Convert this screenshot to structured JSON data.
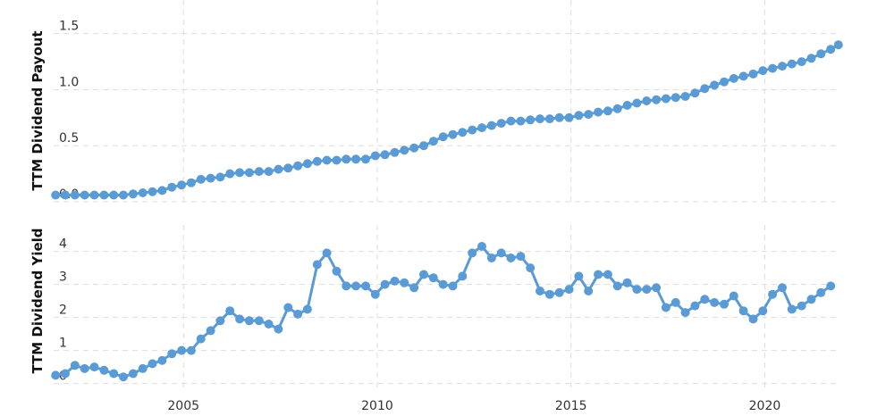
{
  "chart_data": [
    {
      "type": "line",
      "ylabel": "TTM Dividend Payout",
      "ylim": [
        0,
        1.8
      ],
      "yticks": [
        "0.0",
        "0.5",
        "1.0",
        "1.5"
      ],
      "xlim": [
        2001.65,
        2021.95
      ],
      "xticks": [
        "2005",
        "2010",
        "2015",
        "2020"
      ],
      "grid": true,
      "color": "#5b9bd5",
      "series": [
        {
          "values": [
            [
              2001.7,
              0.06
            ],
            [
              2001.95,
              0.06
            ],
            [
              2002.2,
              0.06
            ],
            [
              2002.45,
              0.06
            ],
            [
              2002.7,
              0.06
            ],
            [
              2002.95,
              0.06
            ],
            [
              2003.2,
              0.06
            ],
            [
              2003.45,
              0.06
            ],
            [
              2003.7,
              0.07
            ],
            [
              2003.95,
              0.08
            ],
            [
              2004.2,
              0.09
            ],
            [
              2004.45,
              0.1
            ],
            [
              2004.7,
              0.13
            ],
            [
              2004.95,
              0.15
            ],
            [
              2005.2,
              0.17
            ],
            [
              2005.45,
              0.2
            ],
            [
              2005.7,
              0.21
            ],
            [
              2005.95,
              0.22
            ],
            [
              2006.2,
              0.25
            ],
            [
              2006.45,
              0.26
            ],
            [
              2006.7,
              0.26
            ],
            [
              2006.95,
              0.27
            ],
            [
              2007.2,
              0.27
            ],
            [
              2007.45,
              0.29
            ],
            [
              2007.7,
              0.3
            ],
            [
              2007.95,
              0.32
            ],
            [
              2008.2,
              0.34
            ],
            [
              2008.45,
              0.36
            ],
            [
              2008.7,
              0.37
            ],
            [
              2008.95,
              0.37
            ],
            [
              2009.2,
              0.38
            ],
            [
              2009.45,
              0.38
            ],
            [
              2009.7,
              0.38
            ],
            [
              2009.95,
              0.41
            ],
            [
              2010.2,
              0.42
            ],
            [
              2010.45,
              0.44
            ],
            [
              2010.7,
              0.46
            ],
            [
              2010.95,
              0.48
            ],
            [
              2011.2,
              0.5
            ],
            [
              2011.45,
              0.54
            ],
            [
              2011.7,
              0.58
            ],
            [
              2011.95,
              0.6
            ],
            [
              2012.2,
              0.62
            ],
            [
              2012.45,
              0.64
            ],
            [
              2012.7,
              0.66
            ],
            [
              2012.95,
              0.68
            ],
            [
              2013.2,
              0.7
            ],
            [
              2013.45,
              0.72
            ],
            [
              2013.7,
              0.72
            ],
            [
              2013.95,
              0.73
            ],
            [
              2014.2,
              0.74
            ],
            [
              2014.45,
              0.74
            ],
            [
              2014.7,
              0.75
            ],
            [
              2014.95,
              0.75
            ],
            [
              2015.2,
              0.77
            ],
            [
              2015.45,
              0.78
            ],
            [
              2015.7,
              0.8
            ],
            [
              2015.95,
              0.81
            ],
            [
              2016.2,
              0.83
            ],
            [
              2016.45,
              0.86
            ],
            [
              2016.7,
              0.88
            ],
            [
              2016.95,
              0.9
            ],
            [
              2017.2,
              0.91
            ],
            [
              2017.45,
              0.92
            ],
            [
              2017.7,
              0.93
            ],
            [
              2017.95,
              0.94
            ],
            [
              2018.2,
              0.97
            ],
            [
              2018.45,
              1.01
            ],
            [
              2018.7,
              1.04
            ],
            [
              2018.95,
              1.07
            ],
            [
              2019.2,
              1.1
            ],
            [
              2019.45,
              1.12
            ],
            [
              2019.7,
              1.14
            ],
            [
              2019.95,
              1.17
            ],
            [
              2020.2,
              1.19
            ],
            [
              2020.45,
              1.21
            ],
            [
              2020.7,
              1.23
            ],
            [
              2020.95,
              1.25
            ],
            [
              2021.2,
              1.28
            ],
            [
              2021.45,
              1.32
            ],
            [
              2021.7,
              1.36
            ],
            [
              2021.9,
              1.4
            ]
          ]
        }
      ]
    },
    {
      "type": "line",
      "ylabel": "TTM Dividend Yield",
      "ylim": [
        -0.2,
        4.8
      ],
      "yticks": [
        "0",
        "1",
        "2",
        "3",
        "4"
      ],
      "xlim": [
        2001.65,
        2021.95
      ],
      "xticks": [
        "2005",
        "2010",
        "2015",
        "2020"
      ],
      "grid": true,
      "color": "#5b9bd5",
      "series": [
        {
          "values": [
            [
              2001.7,
              0.25
            ],
            [
              2001.95,
              0.3
            ],
            [
              2002.2,
              0.55
            ],
            [
              2002.45,
              0.45
            ],
            [
              2002.7,
              0.5
            ],
            [
              2002.95,
              0.4
            ],
            [
              2003.2,
              0.3
            ],
            [
              2003.45,
              0.2
            ],
            [
              2003.7,
              0.3
            ],
            [
              2003.95,
              0.45
            ],
            [
              2004.2,
              0.6
            ],
            [
              2004.45,
              0.7
            ],
            [
              2004.7,
              0.9
            ],
            [
              2004.95,
              1.0
            ],
            [
              2005.2,
              1.0
            ],
            [
              2005.45,
              1.35
            ],
            [
              2005.7,
              1.6
            ],
            [
              2005.95,
              1.9
            ],
            [
              2006.2,
              2.2
            ],
            [
              2006.45,
              1.95
            ],
            [
              2006.7,
              1.9
            ],
            [
              2006.95,
              1.9
            ],
            [
              2007.2,
              1.8
            ],
            [
              2007.45,
              1.65
            ],
            [
              2007.7,
              2.3
            ],
            [
              2007.95,
              2.1
            ],
            [
              2008.2,
              2.25
            ],
            [
              2008.45,
              3.6
            ],
            [
              2008.7,
              3.95
            ],
            [
              2008.95,
              3.4
            ],
            [
              2009.2,
              2.95
            ],
            [
              2009.45,
              2.95
            ],
            [
              2009.7,
              2.95
            ],
            [
              2009.95,
              2.7
            ],
            [
              2010.2,
              3.0
            ],
            [
              2010.45,
              3.1
            ],
            [
              2010.7,
              3.05
            ],
            [
              2010.95,
              2.9
            ],
            [
              2011.2,
              3.3
            ],
            [
              2011.45,
              3.2
            ],
            [
              2011.7,
              3.0
            ],
            [
              2011.95,
              2.95
            ],
            [
              2012.2,
              3.25
            ],
            [
              2012.45,
              3.95
            ],
            [
              2012.7,
              4.15
            ],
            [
              2012.95,
              3.8
            ],
            [
              2013.2,
              3.95
            ],
            [
              2013.45,
              3.8
            ],
            [
              2013.7,
              3.85
            ],
            [
              2013.95,
              3.5
            ],
            [
              2014.2,
              2.8
            ],
            [
              2014.45,
              2.7
            ],
            [
              2014.7,
              2.75
            ],
            [
              2014.95,
              2.85
            ],
            [
              2015.2,
              3.25
            ],
            [
              2015.45,
              2.8
            ],
            [
              2015.7,
              3.3
            ],
            [
              2015.95,
              3.3
            ],
            [
              2016.2,
              2.95
            ],
            [
              2016.45,
              3.05
            ],
            [
              2016.7,
              2.85
            ],
            [
              2016.95,
              2.85
            ],
            [
              2017.2,
              2.9
            ],
            [
              2017.45,
              2.3
            ],
            [
              2017.7,
              2.45
            ],
            [
              2017.95,
              2.15
            ],
            [
              2018.2,
              2.35
            ],
            [
              2018.45,
              2.55
            ],
            [
              2018.7,
              2.45
            ],
            [
              2018.95,
              2.4
            ],
            [
              2019.2,
              2.65
            ],
            [
              2019.45,
              2.2
            ],
            [
              2019.7,
              1.95
            ],
            [
              2019.95,
              2.2
            ],
            [
              2020.2,
              2.7
            ],
            [
              2020.45,
              2.9
            ],
            [
              2020.7,
              2.25
            ],
            [
              2020.95,
              2.35
            ],
            [
              2021.2,
              2.55
            ],
            [
              2021.45,
              2.75
            ],
            [
              2021.7,
              2.95
            ]
          ]
        }
      ]
    }
  ]
}
